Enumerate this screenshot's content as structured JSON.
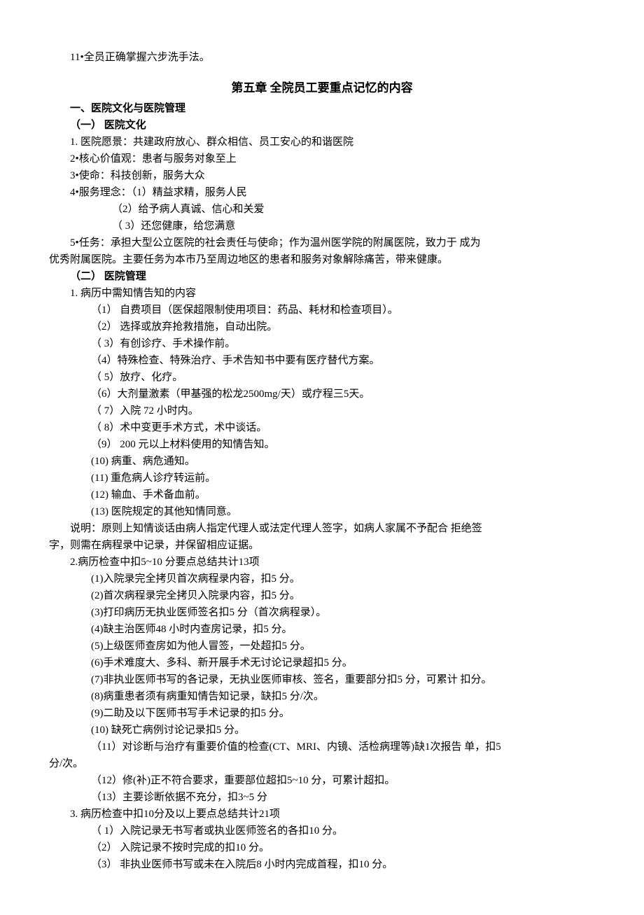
{
  "top_line": "11•全员正确掌握六步洗手法。",
  "chapter_title": "第五章  全院员工要重点记忆的内容",
  "section1_heading": "一、医院文化与医院管理",
  "sub1_heading": "（一）  医院文化",
  "culture": {
    "l1": "1.  医院愿景：共建政府放心、群众相信、员工安心的和谐医院",
    "l2": "2•核心价值观：患者与服务对象至上",
    "l3": "3•使命：科技创新，服务大众",
    "l4": "4•服务理念：（1）精益求精，服务人民",
    "l4b": "（2）给予病人真诚、信心和关爱",
    "l4c": "（ 3）还您健康，给您满意",
    "l5a": "5•任务：承担大型公立医院的社会责任与使命；作为温州医学院的附属医院，致力于 成为",
    "l5b": "优秀附属医院。主要任务为本市乃至周边地区的患者和服务对象解除痛苦，带来健康。"
  },
  "sub2_heading": "（二）  医院管理",
  "mgmt": {
    "h1": "1.  病历中需知情告知的内容",
    "i1": "（1）   自费项目（医保超限制使用项目：药品、耗材和检查项目）。",
    "i2": "（2）  选择或放弃抢救措施，自动出院。",
    "i3": "（ 3）有创诊疗、手术操作前。",
    "i4": "（4）特殊检查、特殊治疗、手术告知书中要有医疗替代方案。",
    "i5": "（ 5）放疗、化疗。",
    "i6": "（6）大剂量激素（甲基强的松龙2500mg/天）或疗程三5天。",
    "i7": "（ 7）入院 72 小时内。",
    "i8": "（ 8）术中变更手术方式，术中谈话。",
    "i9": "（9）    200 元以上材料使用的知情告知。",
    "i10": "(10)       病重、病危通知。",
    "i11": "(11)       重危病人诊疗转运前。",
    "i12": "(12)       输血、手术备血前。",
    "i13": "(13)       医院规定的其他知情同意。",
    "note_a": "说明：原则上知情谈话由病人指定代理人或法定代理人签字，如病人家属不予配合 拒绝签",
    "note_b": "字，则需在病程录中记录，并保留相应证据。",
    "h2": "2.病历检查中扣5~10 分要点总结共计13项",
    "j1": "(1)入院录完全拷贝首次病程录内容，扣5 分。",
    "j2": "(2)首次病程录完全拷贝入院录内容，扣5 分。",
    "j3": "(3)打印病历无执业医师签名扣5 分（首次病程录）。",
    "j4": "(4)缺主治医师48 小时内查房记录，扣5 分。",
    "j5": "(5)上级医师查房如为他人冒签，一处超扣5 分。",
    "j6": "(6)手术难度大、多科、新开展手术无讨论记录超扣5 分。",
    "j7": "(7)非执业医师书写的各记录，无执业医师审核、签名，重要部分扣5 分，可累计 扣分。",
    "j8": "(8)病重患者须有病重知情告知记录，缺扣5 分/次。",
    "j9": "(9)二助及以下医师书写手术记录的扣5 分。",
    "j10": "(10)      缺死亡病例讨论记录扣5 分。",
    "j11a": "（11）对诊断与治疗有重要价值的检查(CT、MRI、内镜、活检病理等)缺1次报告 单，扣5",
    "j11b": "分/次。",
    "j12": "（12）修(补)正不符合要求，重要部位超扣5~10 分，可累计超扣。",
    "j13": "（13）主要诊断依据不充分，扣3~5 分",
    "h3": "3.  病历检查中扣10分及以上要点总结共计21项",
    "k1": "（ 1）入院记录无书写者或执业医师签名的各扣10 分。",
    "k2": "（2）  入院记录不按时完成的扣10 分。",
    "k3": "（3）  非执业医师书写或未在入院后8 小时内完成首程，扣10 分。"
  }
}
